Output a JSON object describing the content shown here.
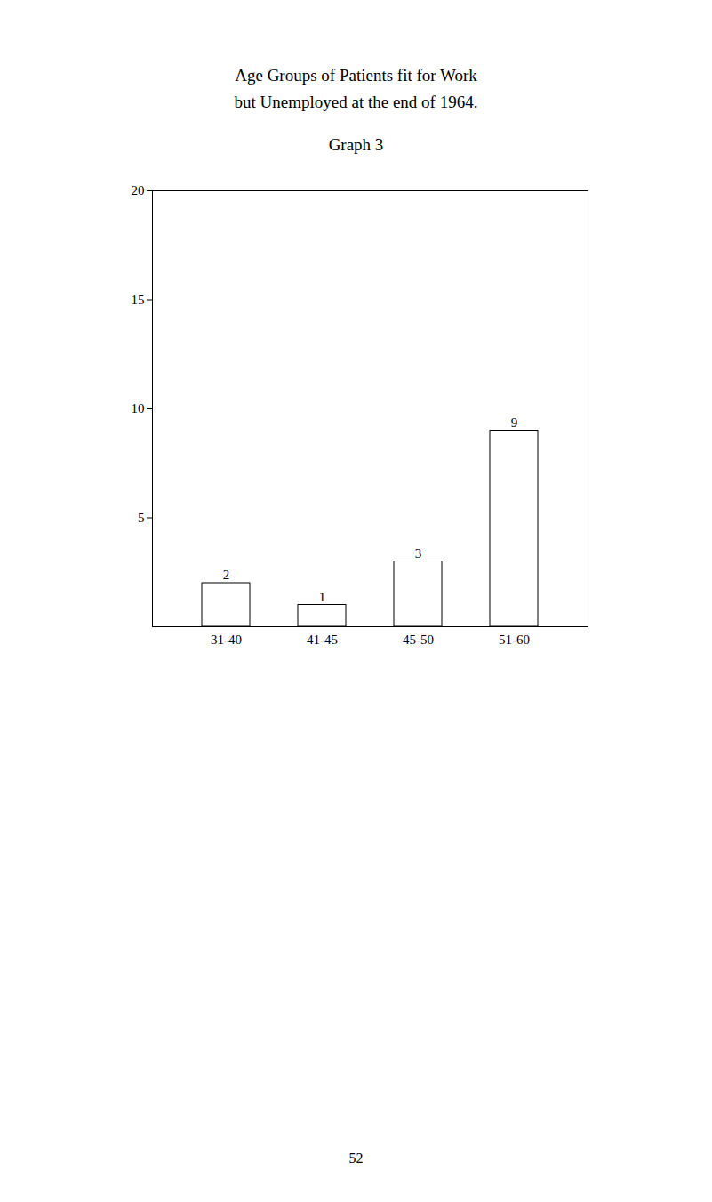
{
  "chart_data": {
    "type": "bar",
    "title": "Age Groups of Patients fit for Work\nbut Unemployed at the end of 1964.",
    "subtitle": "Graph 3",
    "categories": [
      "31-40",
      "41-45",
      "45-50",
      "51-60"
    ],
    "values": [
      2,
      1,
      3,
      9
    ],
    "color": "white",
    "ylim": [
      0,
      20
    ],
    "yticks": [
      5,
      10,
      15,
      20
    ],
    "grid": false,
    "data_labels": true,
    "annotations": [
      "52"
    ]
  }
}
